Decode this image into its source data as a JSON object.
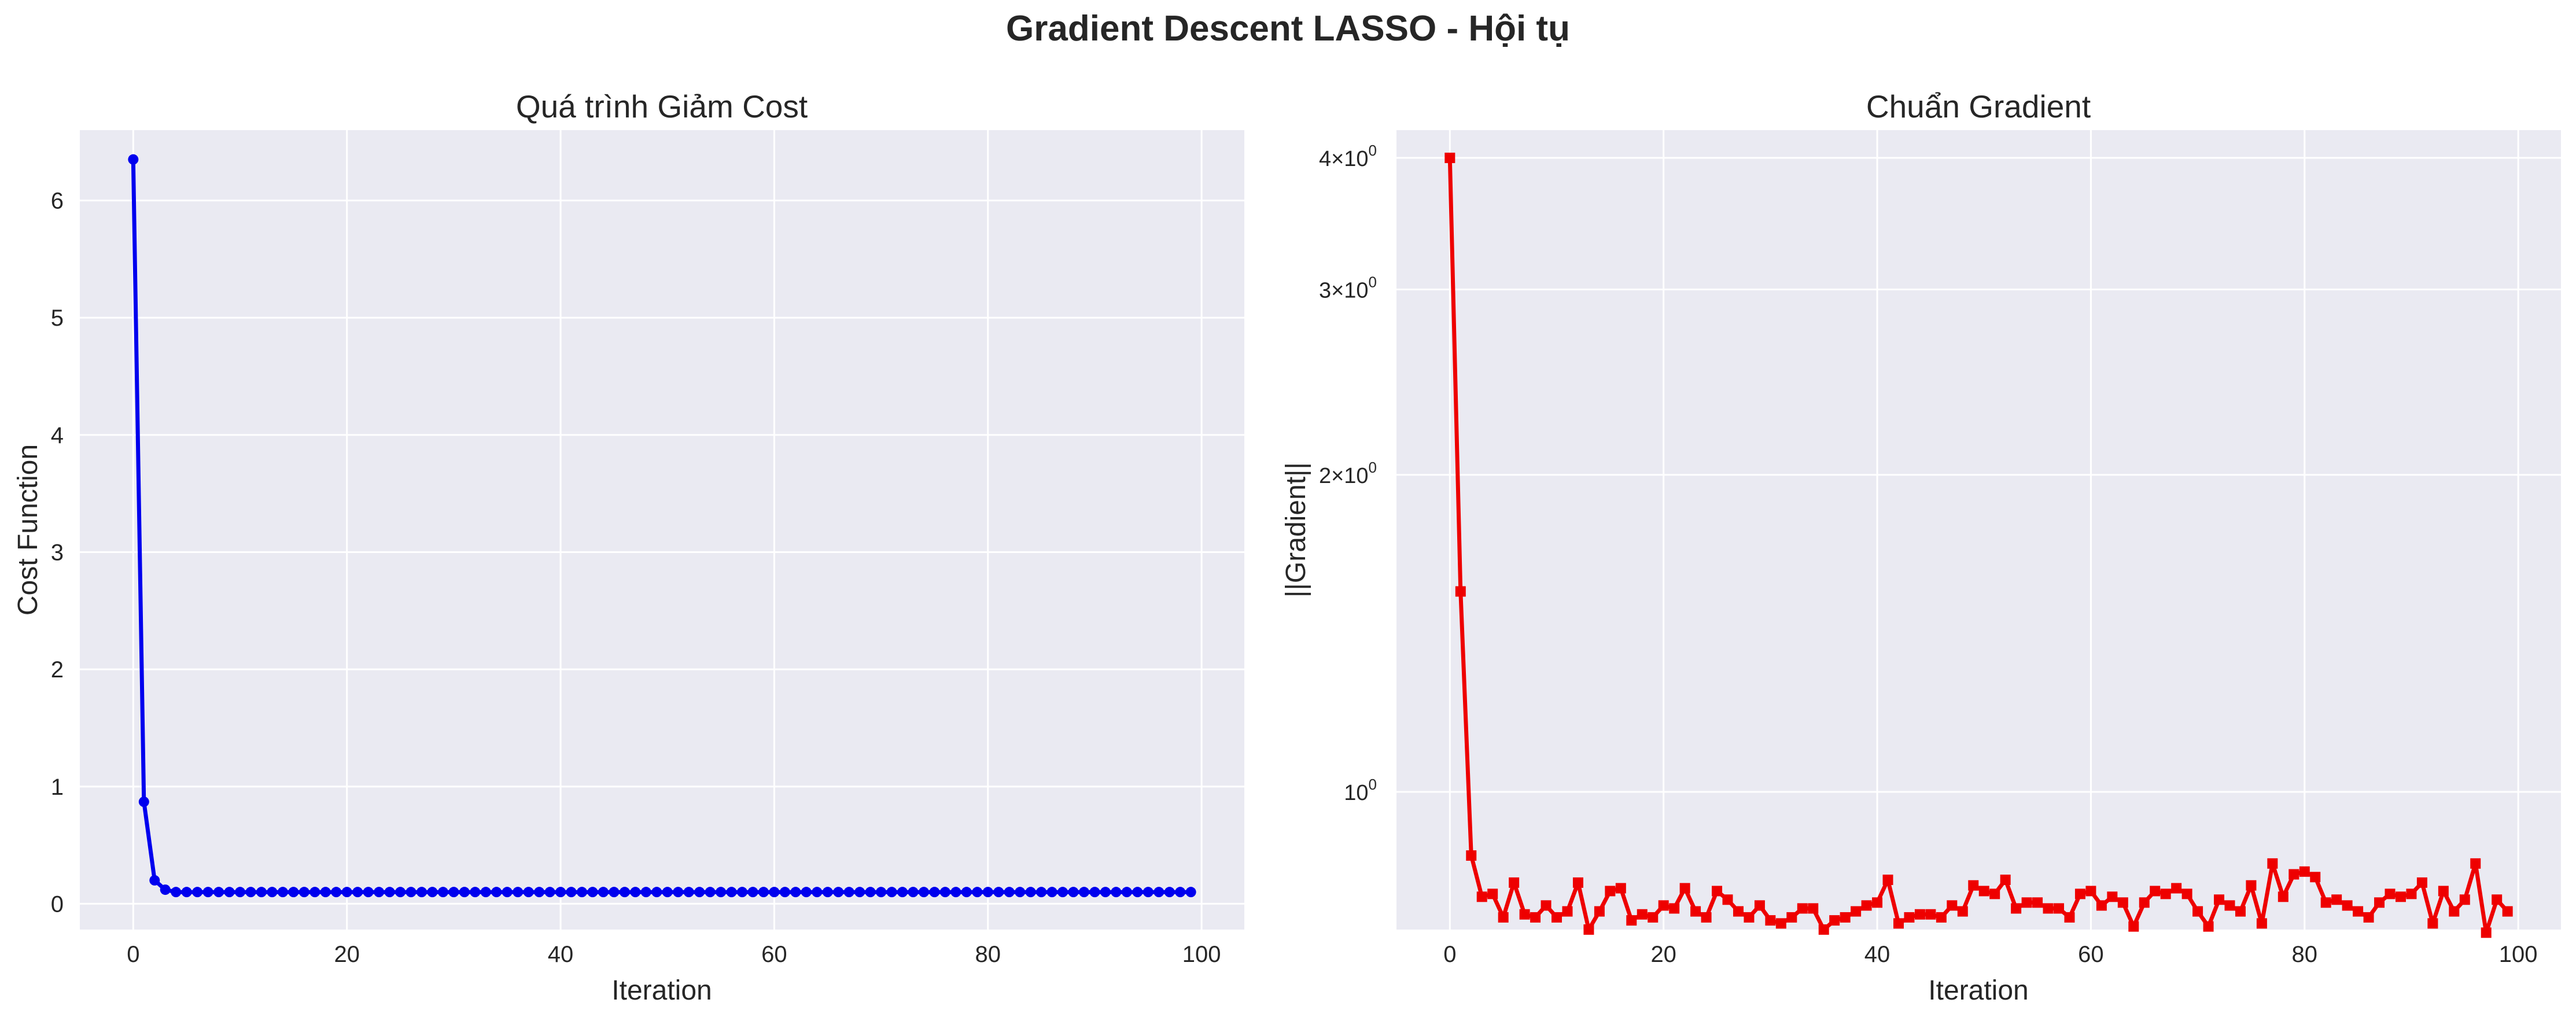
{
  "figure": {
    "suptitle": "Gradient Descent LASSO - Hội tụ"
  },
  "chart_data": [
    {
      "type": "line",
      "title": "Quá trình Giảm Cost",
      "xlabel": "Iteration",
      "ylabel": "Cost Function",
      "xlim": [
        -5,
        104
      ],
      "ylim": [
        -0.22,
        6.6
      ],
      "xticks": [
        0,
        20,
        40,
        60,
        80,
        100
      ],
      "yticks": [
        0,
        1,
        2,
        3,
        4,
        5,
        6
      ],
      "yscale": "linear",
      "grid": true,
      "color": "#0000ee",
      "marker": "circle",
      "x": [
        0,
        1,
        2,
        3,
        4,
        5,
        6,
        7,
        8,
        9,
        10,
        11,
        12,
        13,
        14,
        15,
        16,
        17,
        18,
        19,
        20,
        21,
        22,
        23,
        24,
        25,
        26,
        27,
        28,
        29,
        30,
        31,
        32,
        33,
        34,
        35,
        36,
        37,
        38,
        39,
        40,
        41,
        42,
        43,
        44,
        45,
        46,
        47,
        48,
        49,
        50,
        51,
        52,
        53,
        54,
        55,
        56,
        57,
        58,
        59,
        60,
        61,
        62,
        63,
        64,
        65,
        66,
        67,
        68,
        69,
        70,
        71,
        72,
        73,
        74,
        75,
        76,
        77,
        78,
        79,
        80,
        81,
        82,
        83,
        84,
        85,
        86,
        87,
        88,
        89,
        90,
        91,
        92,
        93,
        94,
        95,
        96,
        97,
        98,
        99
      ],
      "values": [
        6.35,
        0.87,
        0.2,
        0.12,
        0.1,
        0.1,
        0.1,
        0.1,
        0.1,
        0.1,
        0.1,
        0.1,
        0.1,
        0.1,
        0.1,
        0.1,
        0.1,
        0.1,
        0.1,
        0.1,
        0.1,
        0.1,
        0.1,
        0.1,
        0.1,
        0.1,
        0.1,
        0.1,
        0.1,
        0.1,
        0.1,
        0.1,
        0.1,
        0.1,
        0.1,
        0.1,
        0.1,
        0.1,
        0.1,
        0.1,
        0.1,
        0.1,
        0.1,
        0.1,
        0.1,
        0.1,
        0.1,
        0.1,
        0.1,
        0.1,
        0.1,
        0.1,
        0.1,
        0.1,
        0.1,
        0.1,
        0.1,
        0.1,
        0.1,
        0.1,
        0.1,
        0.1,
        0.1,
        0.1,
        0.1,
        0.1,
        0.1,
        0.1,
        0.1,
        0.1,
        0.1,
        0.1,
        0.1,
        0.1,
        0.1,
        0.1,
        0.1,
        0.1,
        0.1,
        0.1,
        0.1,
        0.1,
        0.1,
        0.1,
        0.1,
        0.1,
        0.1,
        0.1,
        0.1,
        0.1,
        0.1,
        0.1,
        0.1,
        0.1,
        0.1,
        0.1,
        0.1,
        0.1,
        0.1,
        0.1
      ]
    },
    {
      "type": "line",
      "title": "Chuẩn Gradient",
      "xlabel": "Iteration",
      "ylabel": "||Gradient||",
      "xlim": [
        -5,
        104
      ],
      "ylim": [
        0.74,
        4.25
      ],
      "xticks": [
        0,
        20,
        40,
        60,
        80,
        100
      ],
      "yscale": "log",
      "ylogticks": [
        {
          "value": 4,
          "mantissa": "4",
          "exponent": "0"
        },
        {
          "value": 3,
          "mantissa": "3",
          "exponent": "0"
        },
        {
          "value": 2,
          "mantissa": "2",
          "exponent": "0"
        },
        {
          "value": 1,
          "mantissa": "10",
          "exponent": "0"
        }
      ],
      "grid": true,
      "color": "#ee0000",
      "marker": "square",
      "x": [
        0,
        1,
        2,
        3,
        4,
        5,
        6,
        7,
        8,
        9,
        10,
        11,
        12,
        13,
        14,
        15,
        16,
        17,
        18,
        19,
        20,
        21,
        22,
        23,
        24,
        25,
        26,
        27,
        28,
        29,
        30,
        31,
        32,
        33,
        34,
        35,
        36,
        37,
        38,
        39,
        40,
        41,
        42,
        43,
        44,
        45,
        46,
        47,
        48,
        49,
        50,
        51,
        52,
        53,
        54,
        55,
        56,
        57,
        58,
        59,
        60,
        61,
        62,
        63,
        64,
        65,
        66,
        67,
        68,
        69,
        70,
        71,
        72,
        73,
        74,
        75,
        76,
        77,
        78,
        79,
        80,
        81,
        82,
        83,
        84,
        85,
        86,
        87,
        88,
        89,
        90,
        91,
        92,
        93,
        94,
        95,
        96,
        97,
        98,
        99
      ],
      "values": [
        4.0,
        1.55,
        0.87,
        0.795,
        0.8,
        0.76,
        0.82,
        0.765,
        0.76,
        0.78,
        0.76,
        0.77,
        0.82,
        0.74,
        0.77,
        0.805,
        0.81,
        0.755,
        0.765,
        0.76,
        0.78,
        0.775,
        0.81,
        0.77,
        0.76,
        0.805,
        0.79,
        0.77,
        0.76,
        0.78,
        0.755,
        0.75,
        0.76,
        0.775,
        0.775,
        0.74,
        0.755,
        0.76,
        0.77,
        0.78,
        0.785,
        0.825,
        0.75,
        0.76,
        0.765,
        0.765,
        0.76,
        0.78,
        0.77,
        0.815,
        0.805,
        0.8,
        0.825,
        0.775,
        0.785,
        0.785,
        0.775,
        0.775,
        0.76,
        0.8,
        0.805,
        0.78,
        0.795,
        0.785,
        0.745,
        0.785,
        0.805,
        0.8,
        0.81,
        0.8,
        0.77,
        0.745,
        0.79,
        0.78,
        0.77,
        0.815,
        0.75,
        0.855,
        0.795,
        0.835,
        0.84,
        0.83,
        0.785,
        0.79,
        0.78,
        0.77,
        0.76,
        0.785,
        0.8,
        0.795,
        0.8,
        0.82,
        0.75,
        0.805,
        0.77,
        0.79,
        0.855,
        0.735,
        0.79,
        0.77
      ]
    }
  ]
}
